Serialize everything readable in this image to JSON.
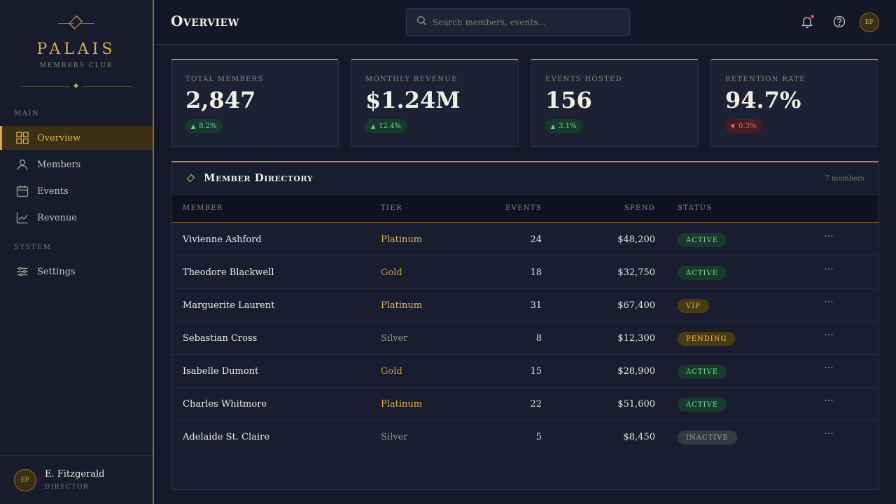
{
  "brand": {
    "name": "PALAIS",
    "subtitle": "MEMBERS CLUB"
  },
  "nav": {
    "section_main": "MAIN",
    "section_system": "SYSTEM",
    "items": [
      {
        "label": "Overview",
        "icon": "grid-icon",
        "active": true
      },
      {
        "label": "Members",
        "icon": "user-icon",
        "active": false
      },
      {
        "label": "Events",
        "icon": "calendar-icon",
        "active": false
      },
      {
        "label": "Revenue",
        "icon": "chart-line-icon",
        "active": false
      },
      {
        "label": "Settings",
        "icon": "sliders-icon",
        "active": false
      }
    ]
  },
  "user": {
    "initials": "EF",
    "name": "E. Fitzgerald",
    "role": "DIRECTOR"
  },
  "header": {
    "title": "Overview",
    "search_placeholder": "Search members, events...",
    "avatar_initials": "EF"
  },
  "stats": [
    {
      "label": "Total Members",
      "value": "2,847",
      "delta": "8.2%",
      "direction": "up"
    },
    {
      "label": "Monthly Revenue",
      "value": "$1.24M",
      "delta": "12.4%",
      "direction": "up"
    },
    {
      "label": "Events Hosted",
      "value": "156",
      "delta": "3.1%",
      "direction": "up"
    },
    {
      "label": "Retention Rate",
      "value": "94.7%",
      "delta": "0.3%",
      "direction": "down"
    }
  ],
  "directory": {
    "title": "Member Directory",
    "count": "7 members",
    "columns": {
      "member": "Member",
      "tier": "Tier",
      "events": "Events",
      "spend": "Spend",
      "status": "Status"
    },
    "rows": [
      {
        "name": "Vivienne Ashford",
        "tier": "Platinum",
        "events": "24",
        "spend": "$48,200",
        "status": "ACTIVE"
      },
      {
        "name": "Theodore Blackwell",
        "tier": "Gold",
        "events": "18",
        "spend": "$32,750",
        "status": "ACTIVE"
      },
      {
        "name": "Marguerite Laurent",
        "tier": "Platinum",
        "events": "31",
        "spend": "$67,400",
        "status": "VIP"
      },
      {
        "name": "Sebastian Cross",
        "tier": "Silver",
        "events": "8",
        "spend": "$12,300",
        "status": "PENDING"
      },
      {
        "name": "Isabelle Dumont",
        "tier": "Gold",
        "events": "15",
        "spend": "$28,900",
        "status": "ACTIVE"
      },
      {
        "name": "Charles Whitmore",
        "tier": "Platinum",
        "events": "22",
        "spend": "$51,600",
        "status": "ACTIVE"
      },
      {
        "name": "Adelaide St. Claire",
        "tier": "Silver",
        "events": "5",
        "spend": "$8,450",
        "status": "INACTIVE"
      }
    ]
  },
  "colors": {
    "accent": "#d9ad52",
    "background": "#141828",
    "active_green": "#7fd7a4",
    "alert_red": "#e0473f"
  }
}
